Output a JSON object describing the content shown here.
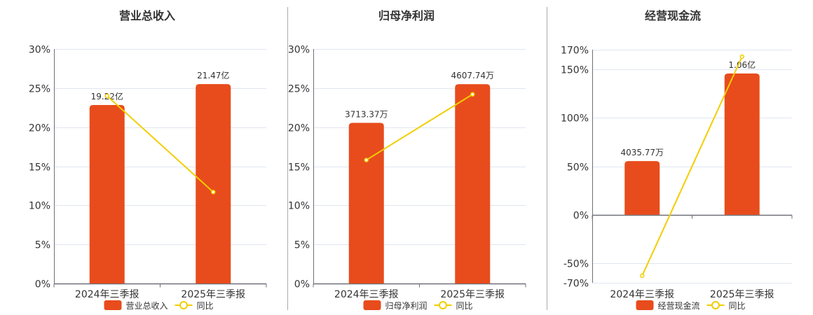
{
  "colors": {
    "bar": "#e84c1c",
    "line": "#f2cd00",
    "grid": "#e0e6f1",
    "axis": "#6e7079",
    "separator": "#aaaaaa"
  },
  "chart_data": [
    {
      "type": "bar+line",
      "title": "营业总收入",
      "categories": [
        "2024年三季报",
        "2025年三季报"
      ],
      "bar_series": {
        "name": "营业总收入",
        "values": [
          19.22,
          21.47
        ],
        "unit": "亿",
        "labels": [
          "19.22亿",
          "21.47亿"
        ],
        "range": [
          0,
          25.25
        ]
      },
      "line_series": {
        "name": "同比",
        "values": [
          24.0,
          11.7
        ],
        "unit": "%"
      },
      "y_ticks": [
        "0%",
        "5%",
        "10%",
        "15%",
        "20%",
        "25%",
        "30%"
      ],
      "y_tick_values": [
        0,
        5,
        10,
        15,
        20,
        25,
        30
      ],
      "ylim": [
        0,
        30
      ],
      "grid": true,
      "legend": "bottom"
    },
    {
      "type": "bar+line",
      "title": "归母净利润",
      "categories": [
        "2024年三季报",
        "2025年三季报"
      ],
      "bar_series": {
        "name": "归母净利润",
        "values": [
          3713.37,
          4607.74
        ],
        "unit": "万",
        "labels": [
          "3713.37万",
          "4607.74万"
        ],
        "range": [
          0,
          5420
        ]
      },
      "line_series": {
        "name": "同比",
        "values": [
          15.8,
          24.2
        ],
        "unit": "%"
      },
      "y_ticks": [
        "0%",
        "5%",
        "10%",
        "15%",
        "20%",
        "25%",
        "30%"
      ],
      "y_tick_values": [
        0,
        5,
        10,
        15,
        20,
        25,
        30
      ],
      "ylim": [
        0,
        30
      ],
      "grid": true,
      "legend": "bottom"
    },
    {
      "type": "bar+line",
      "title": "经营现金流",
      "categories": [
        "2024年三季报",
        "2025年三季报"
      ],
      "bar_series": {
        "name": "经营现金流",
        "values": [
          4035.77,
          10600
        ],
        "unit": "万",
        "labels": [
          "4035.77万",
          "1.06亿"
        ],
        "range": [
          -5090,
          12385
        ]
      },
      "line_series": {
        "name": "同比",
        "values": [
          -62.7,
          162.8
        ],
        "unit": "%"
      },
      "y_ticks": [
        "-70%",
        "-50%",
        "0%",
        "50%",
        "100%",
        "150%",
        "170%"
      ],
      "y_tick_values": [
        -70,
        -50,
        0,
        50,
        100,
        150,
        170
      ],
      "ylim": [
        -70,
        170
      ],
      "grid": true,
      "legend": "bottom"
    }
  ]
}
